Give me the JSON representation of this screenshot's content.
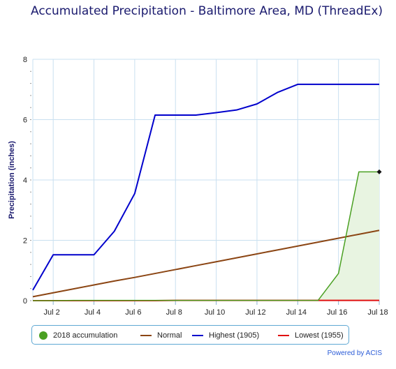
{
  "title": "Accumulated Precipitation - Baltimore Area, MD (ThreadEx)",
  "credit": "Powered by ACIS",
  "colors": {
    "grid": "#c9e0f0",
    "accum_2018": "#4aa022",
    "accum_2018_fill": "#e8f4e1",
    "normal": "#8b4513",
    "highest": "#0000cc",
    "lowest": "#e01010",
    "axis": "#8ab4d4"
  },
  "chart_data": {
    "type": "line",
    "title": "Accumulated Precipitation - Baltimore Area, MD (ThreadEx)",
    "xlabel": "",
    "ylabel": "Precipitation (inches)",
    "ylim": [
      0,
      8
    ],
    "xlim": [
      1,
      18
    ],
    "yticks": [
      "0",
      "2",
      "4",
      "6",
      "8"
    ],
    "xticks": [
      {
        "day": 2,
        "label": "Jul 2"
      },
      {
        "day": 4,
        "label": "Jul 4"
      },
      {
        "day": 6,
        "label": "Jul 6"
      },
      {
        "day": 8,
        "label": "Jul 8"
      },
      {
        "day": 10,
        "label": "Jul 10"
      },
      {
        "day": 12,
        "label": "Jul 12"
      },
      {
        "day": 14,
        "label": "Jul 14"
      },
      {
        "day": 16,
        "label": "Jul 16"
      },
      {
        "day": 18,
        "label": "Jul 18"
      }
    ],
    "x": [
      1,
      2,
      3,
      4,
      5,
      6,
      7,
      8,
      9,
      10,
      11,
      12,
      13,
      14,
      15,
      16,
      17,
      18
    ],
    "series": [
      {
        "name": "2018 accumulation",
        "key": "accum_2018",
        "values": [
          0,
          0,
          0.01,
          0.01,
          0.01,
          0.01,
          0.01,
          0.01,
          0.01,
          0.01,
          0.01,
          0.01,
          0.01,
          0.01,
          0.01,
          0.9,
          4.27,
          4.27
        ]
      },
      {
        "name": "Normal",
        "key": "normal",
        "values": [
          0.13,
          0.26,
          0.39,
          0.52,
          0.65,
          0.77,
          0.9,
          1.03,
          1.16,
          1.29,
          1.42,
          1.55,
          1.68,
          1.81,
          1.94,
          2.07,
          2.2,
          2.33
        ]
      },
      {
        "name": "Highest (1905)",
        "key": "highest",
        "values": [
          0.35,
          1.52,
          1.52,
          1.52,
          2.3,
          3.55,
          6.15,
          6.15,
          6.15,
          6.23,
          6.32,
          6.52,
          6.9,
          7.17,
          7.17,
          7.17,
          7.17,
          7.17
        ]
      },
      {
        "name": "Lowest (1955)",
        "key": "lowest",
        "values": [
          0,
          0,
          0,
          0,
          0,
          0,
          0,
          0.01,
          0.01,
          0.01,
          0.01,
          0.01,
          0.01,
          0.01,
          0.01,
          0.01,
          0.01,
          0.01
        ]
      }
    ],
    "grid": true,
    "legend_position": "bottom"
  }
}
